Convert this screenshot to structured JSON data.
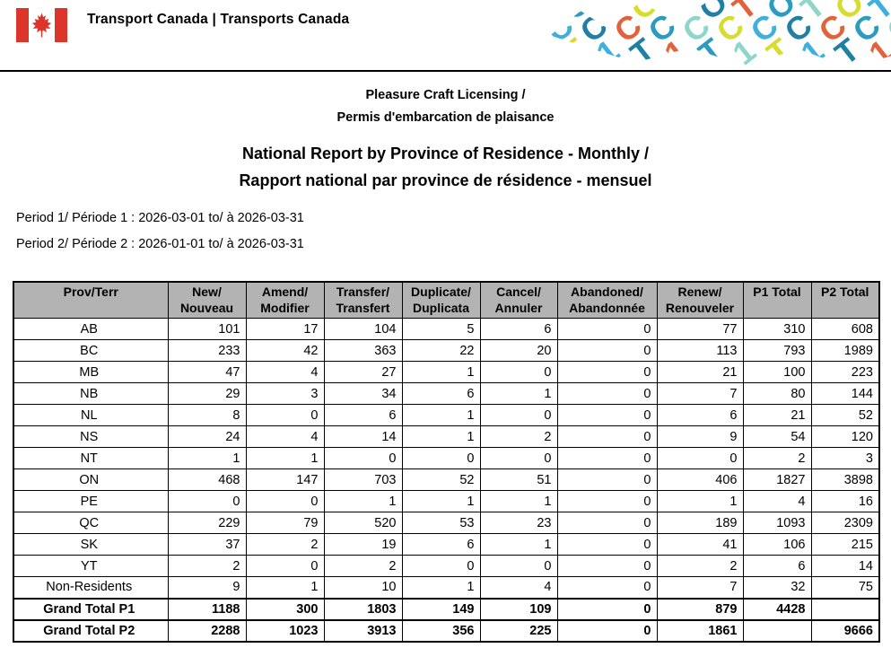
{
  "header": {
    "flag_icon": "canada-flag-icon",
    "flag_red": "#DC352A",
    "dept_title": "Transport Canada | Transports Canada",
    "logo_icon": "tc-pattern-logo",
    "logo_colors": [
      "#E2633B",
      "#1F80A3",
      "#3FB0DC",
      "#D8DC2F",
      "#8FD6CA",
      "#2B9BC0"
    ],
    "logo_glyphs": [
      "T",
      "C",
      "1",
      "O",
      "C",
      "T"
    ]
  },
  "titles": {
    "program_line1": "Pleasure Craft Licensing /",
    "program_line2": "Permis d'embarcation de plaisance",
    "report_line1": "National Report by Province of Residence - Monthly /",
    "report_line2": "Rapport national par province de résidence - mensuel"
  },
  "periods": [
    "Period 1/ Période 1 : 2026-03-01 to/ à 2026-03-31",
    "Period 2/ Période 2 : 2026-01-01 to/ à 2026-03-31"
  ],
  "table": {
    "header_bg": "#B3B3B3",
    "columns": [
      [
        "Prov/Terr"
      ],
      [
        "New/",
        "Nouveau"
      ],
      [
        "Amend/",
        "Modifier"
      ],
      [
        "Transfer/",
        "Transfert"
      ],
      [
        "Duplicate/",
        "Duplicata"
      ],
      [
        "Cancel/",
        "Annuler"
      ],
      [
        "Abandoned/",
        "Abandonnée"
      ],
      [
        "Renew/",
        "Renouveler"
      ],
      [
        "P1 Total"
      ],
      [
        "P2 Total"
      ]
    ],
    "rows": [
      {
        "label": "AB",
        "values": [
          "101",
          "17",
          "104",
          "5",
          "6",
          "0",
          "77",
          "310",
          "608"
        ]
      },
      {
        "label": "BC",
        "values": [
          "233",
          "42",
          "363",
          "22",
          "20",
          "0",
          "113",
          "793",
          "1989"
        ]
      },
      {
        "label": "MB",
        "values": [
          "47",
          "4",
          "27",
          "1",
          "0",
          "0",
          "21",
          "100",
          "223"
        ]
      },
      {
        "label": "NB",
        "values": [
          "29",
          "3",
          "34",
          "6",
          "1",
          "0",
          "7",
          "80",
          "144"
        ]
      },
      {
        "label": "NL",
        "values": [
          "8",
          "0",
          "6",
          "1",
          "0",
          "0",
          "6",
          "21",
          "52"
        ]
      },
      {
        "label": "NS",
        "values": [
          "24",
          "4",
          "14",
          "1",
          "2",
          "0",
          "9",
          "54",
          "120"
        ]
      },
      {
        "label": "NT",
        "values": [
          "1",
          "1",
          "0",
          "0",
          "0",
          "0",
          "0",
          "2",
          "3"
        ]
      },
      {
        "label": "ON",
        "values": [
          "468",
          "147",
          "703",
          "52",
          "51",
          "0",
          "406",
          "1827",
          "3898"
        ]
      },
      {
        "label": "PE",
        "values": [
          "0",
          "0",
          "1",
          "1",
          "1",
          "0",
          "1",
          "4",
          "16"
        ]
      },
      {
        "label": "QC",
        "values": [
          "229",
          "79",
          "520",
          "53",
          "23",
          "0",
          "189",
          "1093",
          "2309"
        ]
      },
      {
        "label": "SK",
        "values": [
          "37",
          "2",
          "19",
          "6",
          "1",
          "0",
          "41",
          "106",
          "215"
        ]
      },
      {
        "label": "YT",
        "values": [
          "2",
          "0",
          "2",
          "0",
          "0",
          "0",
          "2",
          "6",
          "14"
        ]
      },
      {
        "label": "Non-Residents",
        "values": [
          "9",
          "1",
          "10",
          "1",
          "4",
          "0",
          "7",
          "32",
          "75"
        ]
      }
    ],
    "total_rows": [
      {
        "label": "Grand Total P1",
        "values": [
          "1188",
          "300",
          "1803",
          "149",
          "109",
          "0",
          "879",
          "4428",
          ""
        ]
      },
      {
        "label": "Grand Total P2",
        "values": [
          "2288",
          "1023",
          "3913",
          "356",
          "225",
          "0",
          "1861",
          "",
          "9666"
        ]
      }
    ]
  }
}
